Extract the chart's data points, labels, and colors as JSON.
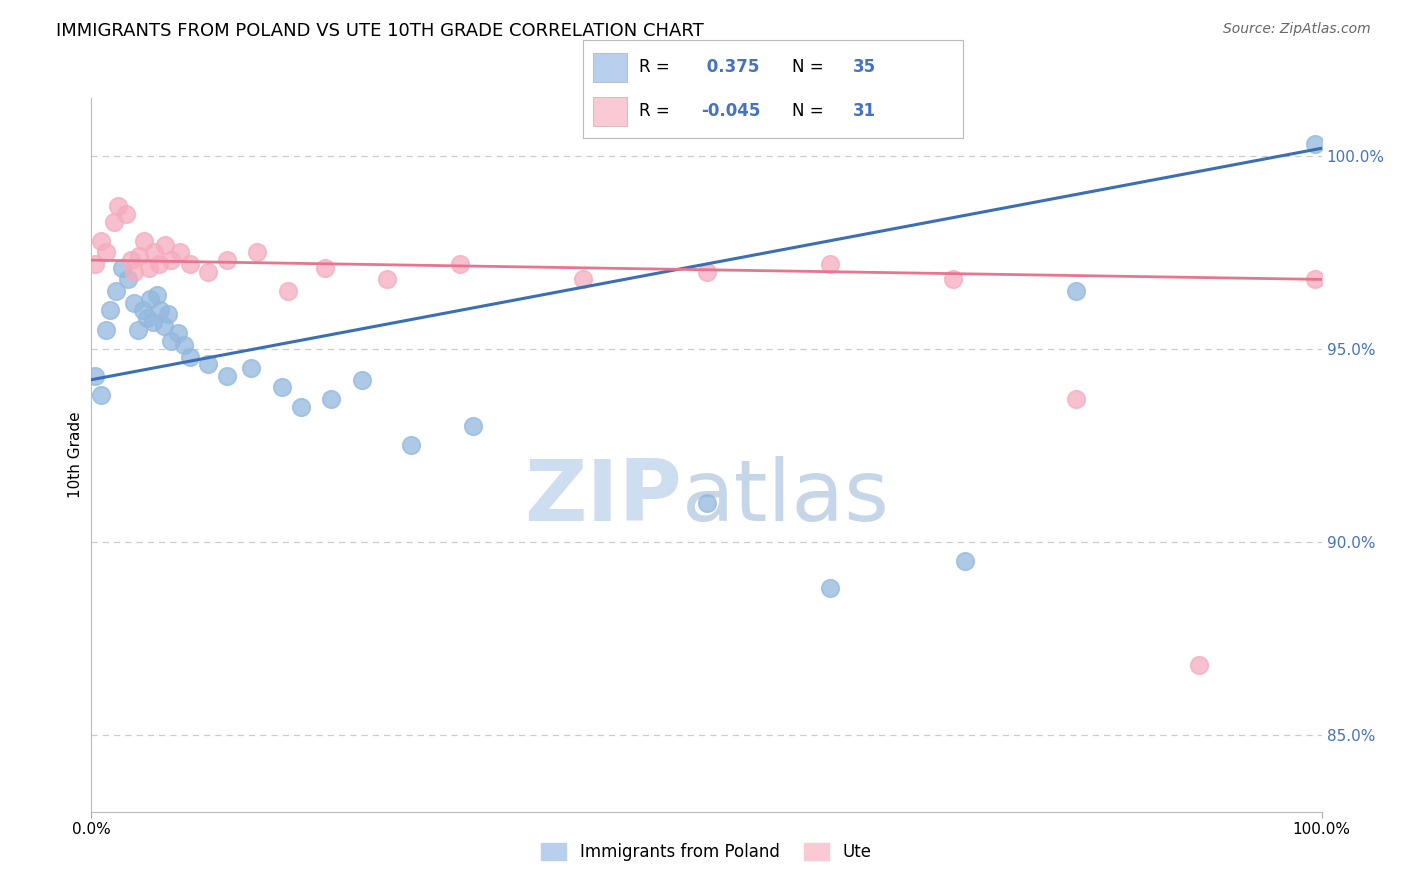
{
  "title": "IMMIGRANTS FROM POLAND VS UTE 10TH GRADE CORRELATION CHART",
  "source": "Source: ZipAtlas.com",
  "ylabel": "10th Grade",
  "legend_label1": "Immigrants from Poland",
  "legend_label2": "Ute",
  "R1": 0.375,
  "N1": 35,
  "R2": -0.045,
  "N2": 31,
  "blue_scatter_color": "#92B8DE",
  "pink_scatter_color": "#F5ABBE",
  "blue_line_color": "#3B6FB5",
  "pink_line_color": "#E8748E",
  "blue_legend_color": "#B8D0ED",
  "pink_legend_color": "#F9C9D4",
  "watermark_zip": "ZIP",
  "watermark_atlas": "atlas",
  "watermark_color_zip": "#C8DCF0",
  "watermark_color_atlas": "#B8CCE8",
  "blue_x": [
    0.3,
    0.8,
    1.2,
    1.5,
    2.0,
    2.5,
    3.0,
    3.5,
    3.8,
    4.2,
    4.5,
    4.8,
    5.0,
    5.3,
    5.6,
    5.9,
    6.2,
    6.5,
    7.0,
    7.5,
    8.0,
    9.5,
    11.0,
    13.0,
    15.5,
    17.0,
    19.5,
    22.0,
    26.0,
    31.0,
    50.0,
    60.0,
    71.0,
    80.0,
    99.5
  ],
  "blue_y": [
    94.3,
    93.8,
    95.5,
    96.0,
    96.5,
    97.1,
    96.8,
    96.2,
    95.5,
    96.0,
    95.8,
    96.3,
    95.7,
    96.4,
    96.0,
    95.6,
    95.9,
    95.2,
    95.4,
    95.1,
    94.8,
    94.6,
    94.3,
    94.5,
    94.0,
    93.5,
    93.7,
    94.2,
    92.5,
    93.0,
    91.0,
    88.8,
    89.5,
    96.5,
    100.3
  ],
  "pink_x": [
    0.3,
    0.8,
    1.2,
    1.8,
    2.2,
    2.8,
    3.2,
    3.5,
    3.9,
    4.3,
    4.7,
    5.1,
    5.5,
    6.0,
    6.5,
    7.2,
    8.0,
    9.5,
    11.0,
    13.5,
    16.0,
    19.0,
    24.0,
    30.0,
    40.0,
    50.0,
    60.0,
    70.0,
    80.0,
    90.0,
    99.5
  ],
  "pink_y": [
    97.2,
    97.8,
    97.5,
    98.3,
    98.7,
    98.5,
    97.3,
    97.0,
    97.4,
    97.8,
    97.1,
    97.5,
    97.2,
    97.7,
    97.3,
    97.5,
    97.2,
    97.0,
    97.3,
    97.5,
    96.5,
    97.1,
    96.8,
    97.2,
    96.8,
    97.0,
    97.2,
    96.8,
    93.7,
    86.8,
    96.8
  ],
  "xlim": [
    0,
    100
  ],
  "ylim": [
    83.0,
    101.5
  ],
  "ytick_positions": [
    85.0,
    90.0,
    95.0,
    100.0
  ],
  "ytick_labels": [
    "85.0%",
    "90.0%",
    "95.0%",
    "100.0%"
  ],
  "bg_color": "#FFFFFF",
  "grid_color": "#CCCCCC",
  "title_fontsize": 13,
  "tick_fontsize": 11,
  "ylabel_fontsize": 11,
  "legend_fontsize": 12,
  "source_fontsize": 10
}
